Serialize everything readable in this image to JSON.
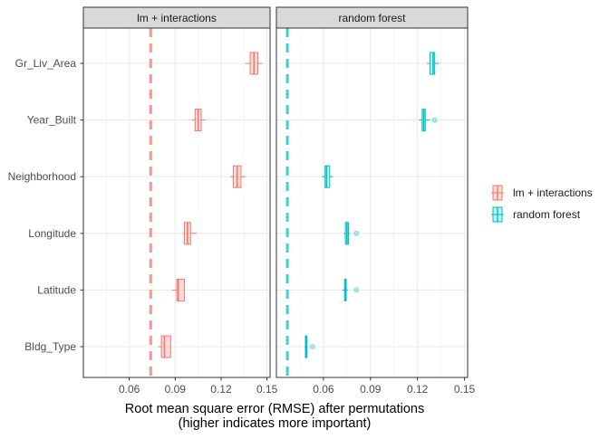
{
  "chart_data": {
    "type": "boxplot",
    "title": "",
    "xlabel_line1": "Root mean square error (RMSE) after permutations",
    "xlabel_line2": "(higher indicates more important)",
    "ylabel": "",
    "xlim": [
      0.03,
      0.152
    ],
    "x_ticks": [
      0.06,
      0.09,
      0.12,
      0.15
    ],
    "x_tick_labels": [
      "0.06",
      "0.09",
      "0.12",
      "0.15"
    ],
    "categories": [
      "Gr_Liv_Area",
      "Year_Built",
      "Neighborhood",
      "Longitude",
      "Latitude",
      "Bldg_Type"
    ],
    "grid": true,
    "legend_position": "right",
    "facets": [
      {
        "name": "lm + interactions",
        "color": "#F8766D",
        "baseline_rmse": 0.074,
        "boxes": [
          {
            "variable": "Gr_Liv_Area",
            "whisker_low": 0.136,
            "q1": 0.139,
            "median": 0.1415,
            "q3": 0.144,
            "whisker_high": 0.147,
            "outliers": []
          },
          {
            "variable": "Year_Built",
            "whisker_low": 0.101,
            "q1": 0.103,
            "median": 0.105,
            "q3": 0.107,
            "whisker_high": 0.11,
            "outliers": []
          },
          {
            "variable": "Neighborhood",
            "whisker_low": 0.126,
            "q1": 0.128,
            "median": 0.1305,
            "q3": 0.133,
            "whisker_high": 0.136,
            "outliers": []
          },
          {
            "variable": "Longitude",
            "whisker_low": 0.095,
            "q1": 0.096,
            "median": 0.098,
            "q3": 0.1,
            "whisker_high": 0.104,
            "outliers": []
          },
          {
            "variable": "Latitude",
            "whisker_low": 0.088,
            "q1": 0.091,
            "median": 0.092,
            "q3": 0.096,
            "whisker_high": 0.096,
            "outliers": []
          },
          {
            "variable": "Bldg_Type",
            "whisker_low": 0.079,
            "q1": 0.081,
            "median": 0.083,
            "q3": 0.087,
            "whisker_high": 0.087,
            "outliers": []
          }
        ]
      },
      {
        "name": "random forest",
        "color": "#00BFC4",
        "baseline_rmse": 0.037,
        "boxes": [
          {
            "variable": "Gr_Liv_Area",
            "whisker_low": 0.126,
            "q1": 0.128,
            "median": 0.13,
            "q3": 0.131,
            "whisker_high": 0.134,
            "outliers": []
          },
          {
            "variable": "Year_Built",
            "whisker_low": 0.121,
            "q1": 0.123,
            "median": 0.124,
            "q3": 0.125,
            "whisker_high": 0.128,
            "outliers": [
              0.131
            ]
          },
          {
            "variable": "Neighborhood",
            "whisker_low": 0.059,
            "q1": 0.061,
            "median": 0.062,
            "q3": 0.064,
            "whisker_high": 0.066,
            "outliers": []
          },
          {
            "variable": "Longitude",
            "whisker_low": 0.073,
            "q1": 0.074,
            "median": 0.075,
            "q3": 0.076,
            "whisker_high": 0.077,
            "outliers": [
              0.081
            ]
          },
          {
            "variable": "Latitude",
            "whisker_low": 0.072,
            "q1": 0.0735,
            "median": 0.074,
            "q3": 0.0745,
            "whisker_high": 0.0755,
            "outliers": [
              0.081
            ]
          },
          {
            "variable": "Bldg_Type",
            "whisker_low": 0.048,
            "q1": 0.0485,
            "median": 0.049,
            "q3": 0.0495,
            "whisker_high": 0.05,
            "outliers": [
              0.053
            ]
          }
        ]
      }
    ],
    "legend": [
      {
        "label": "lm + interactions",
        "color": "#F8766D"
      },
      {
        "label": "random forest",
        "color": "#00BFC4"
      }
    ]
  }
}
